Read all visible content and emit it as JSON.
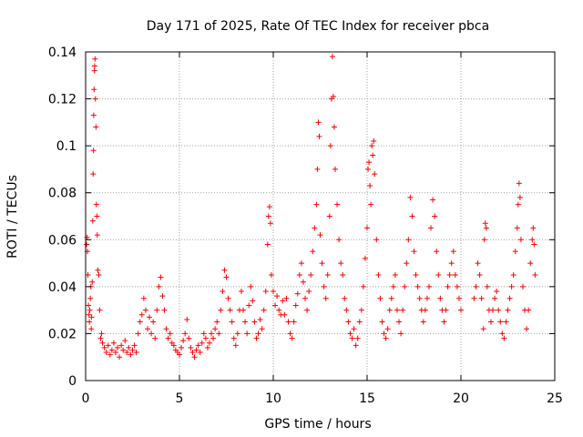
{
  "chart_data": {
    "type": "scatter",
    "title": "Day 171 of 2025, Rate Of TEC Index for receiver pbca",
    "xlabel": "GPS time / hours",
    "ylabel": "ROTI / TECUs",
    "xlim": [
      0,
      25
    ],
    "ylim": [
      0,
      0.14
    ],
    "xticks": [
      0,
      5,
      10,
      15,
      20,
      25
    ],
    "xtick_labels": [
      "0",
      "5",
      "10",
      "15",
      "20",
      "25"
    ],
    "yticks": [
      0,
      0.02,
      0.04,
      0.06,
      0.08,
      0.1,
      0.12,
      0.14
    ],
    "ytick_labels": [
      "0",
      "0.02",
      "0.04",
      "0.06",
      "0.08",
      "0.1",
      "0.12",
      "0.14"
    ],
    "grid": true,
    "marker": "+",
    "color": "#ff0000",
    "series": [
      {
        "name": "",
        "points": [
          [
            0.05,
            0.058
          ],
          [
            0.08,
            0.061
          ],
          [
            0.1,
            0.055
          ],
          [
            0.12,
            0.045
          ],
          [
            0.15,
            0.032
          ],
          [
            0.18,
            0.028
          ],
          [
            0.2,
            0.025
          ],
          [
            0.22,
            0.03
          ],
          [
            0.25,
            0.035
          ],
          [
            0.28,
            0.04
          ],
          [
            0.3,
            0.022
          ],
          [
            0.32,
            0.027
          ],
          [
            0.35,
            0.042
          ],
          [
            0.38,
            0.068
          ],
          [
            0.4,
            0.088
          ],
          [
            0.42,
            0.098
          ],
          [
            0.43,
            0.113
          ],
          [
            0.45,
            0.124
          ],
          [
            0.47,
            0.132
          ],
          [
            0.48,
            0.134
          ],
          [
            0.5,
            0.137
          ],
          [
            0.52,
            0.12
          ],
          [
            0.55,
            0.108
          ],
          [
            0.57,
            0.075
          ],
          [
            0.6,
            0.07
          ],
          [
            0.62,
            0.062
          ],
          [
            0.65,
            0.047
          ],
          [
            0.7,
            0.045
          ],
          [
            0.75,
            0.03
          ],
          [
            0.8,
            0.018
          ],
          [
            0.85,
            0.02
          ],
          [
            0.9,
            0.016
          ],
          [
            1.0,
            0.014
          ],
          [
            1.1,
            0.012
          ],
          [
            1.2,
            0.015
          ],
          [
            1.3,
            0.011
          ],
          [
            1.4,
            0.013
          ],
          [
            1.5,
            0.016
          ],
          [
            1.6,
            0.012
          ],
          [
            1.7,
            0.014
          ],
          [
            1.8,
            0.01
          ],
          [
            1.9,
            0.015
          ],
          [
            2.0,
            0.013
          ],
          [
            2.1,
            0.017
          ],
          [
            2.2,
            0.012
          ],
          [
            2.3,
            0.014
          ],
          [
            2.4,
            0.011
          ],
          [
            2.5,
            0.013
          ],
          [
            2.6,
            0.015
          ],
          [
            2.7,
            0.012
          ],
          [
            2.8,
            0.02
          ],
          [
            2.9,
            0.025
          ],
          [
            3.0,
            0.028
          ],
          [
            3.1,
            0.035
          ],
          [
            3.2,
            0.03
          ],
          [
            3.3,
            0.022
          ],
          [
            3.4,
            0.027
          ],
          [
            3.5,
            0.02
          ],
          [
            3.6,
            0.025
          ],
          [
            3.7,
            0.018
          ],
          [
            3.8,
            0.03
          ],
          [
            3.9,
            0.04
          ],
          [
            4.0,
            0.044
          ],
          [
            4.1,
            0.036
          ],
          [
            4.2,
            0.03
          ],
          [
            4.3,
            0.022
          ],
          [
            4.4,
            0.018
          ],
          [
            4.5,
            0.02
          ],
          [
            4.6,
            0.016
          ],
          [
            4.7,
            0.015
          ],
          [
            4.8,
            0.013
          ],
          [
            4.9,
            0.012
          ],
          [
            5.0,
            0.011
          ],
          [
            5.1,
            0.014
          ],
          [
            5.2,
            0.017
          ],
          [
            5.3,
            0.02
          ],
          [
            5.4,
            0.026
          ],
          [
            5.5,
            0.018
          ],
          [
            5.6,
            0.014
          ],
          [
            5.7,
            0.012
          ],
          [
            5.8,
            0.01
          ],
          [
            5.9,
            0.013
          ],
          [
            6.0,
            0.015
          ],
          [
            6.1,
            0.012
          ],
          [
            6.2,
            0.016
          ],
          [
            6.3,
            0.02
          ],
          [
            6.4,
            0.018
          ],
          [
            6.5,
            0.014
          ],
          [
            6.6,
            0.016
          ],
          [
            6.7,
            0.02
          ],
          [
            6.8,
            0.018
          ],
          [
            6.9,
            0.022
          ],
          [
            7.0,
            0.025
          ],
          [
            7.1,
            0.02
          ],
          [
            7.2,
            0.03
          ],
          [
            7.3,
            0.038
          ],
          [
            7.4,
            0.047
          ],
          [
            7.5,
            0.044
          ],
          [
            7.6,
            0.035
          ],
          [
            7.7,
            0.03
          ],
          [
            7.8,
            0.025
          ],
          [
            7.9,
            0.018
          ],
          [
            8.0,
            0.015
          ],
          [
            8.1,
            0.02
          ],
          [
            8.2,
            0.03
          ],
          [
            8.3,
            0.038
          ],
          [
            8.4,
            0.03
          ],
          [
            8.5,
            0.025
          ],
          [
            8.6,
            0.02
          ],
          [
            8.7,
            0.032
          ],
          [
            8.8,
            0.04
          ],
          [
            8.9,
            0.034
          ],
          [
            9.0,
            0.025
          ],
          [
            9.1,
            0.018
          ],
          [
            9.2,
            0.02
          ],
          [
            9.3,
            0.026
          ],
          [
            9.4,
            0.022
          ],
          [
            9.5,
            0.03
          ],
          [
            9.6,
            0.038
          ],
          [
            9.7,
            0.058
          ],
          [
            9.75,
            0.07
          ],
          [
            9.8,
            0.074
          ],
          [
            9.85,
            0.067
          ],
          [
            9.9,
            0.045
          ],
          [
            10.0,
            0.038
          ],
          [
            10.1,
            0.032
          ],
          [
            10.2,
            0.036
          ],
          [
            10.3,
            0.03
          ],
          [
            10.4,
            0.028
          ],
          [
            10.5,
            0.034
          ],
          [
            10.6,
            0.028
          ],
          [
            10.7,
            0.035
          ],
          [
            10.8,
            0.025
          ],
          [
            10.9,
            0.02
          ],
          [
            11.0,
            0.018
          ],
          [
            11.1,
            0.025
          ],
          [
            11.2,
            0.032
          ],
          [
            11.3,
            0.037
          ],
          [
            11.4,
            0.045
          ],
          [
            11.5,
            0.05
          ],
          [
            11.6,
            0.042
          ],
          [
            11.7,
            0.035
          ],
          [
            11.8,
            0.03
          ],
          [
            11.9,
            0.038
          ],
          [
            12.0,
            0.045
          ],
          [
            12.1,
            0.055
          ],
          [
            12.2,
            0.065
          ],
          [
            12.3,
            0.075
          ],
          [
            12.35,
            0.09
          ],
          [
            12.4,
            0.11
          ],
          [
            12.45,
            0.104
          ],
          [
            12.5,
            0.062
          ],
          [
            12.6,
            0.05
          ],
          [
            12.7,
            0.04
          ],
          [
            12.8,
            0.035
          ],
          [
            12.9,
            0.045
          ],
          [
            13.0,
            0.07
          ],
          [
            13.05,
            0.1
          ],
          [
            13.1,
            0.12
          ],
          [
            13.15,
            0.138
          ],
          [
            13.2,
            0.121
          ],
          [
            13.25,
            0.108
          ],
          [
            13.3,
            0.09
          ],
          [
            13.4,
            0.075
          ],
          [
            13.5,
            0.06
          ],
          [
            13.6,
            0.05
          ],
          [
            13.7,
            0.045
          ],
          [
            13.8,
            0.035
          ],
          [
            13.9,
            0.03
          ],
          [
            14.0,
            0.025
          ],
          [
            14.1,
            0.02
          ],
          [
            14.2,
            0.018
          ],
          [
            14.3,
            0.022
          ],
          [
            14.4,
            0.015
          ],
          [
            14.5,
            0.018
          ],
          [
            14.6,
            0.025
          ],
          [
            14.7,
            0.03
          ],
          [
            14.8,
            0.04
          ],
          [
            14.9,
            0.052
          ],
          [
            15.0,
            0.065
          ],
          [
            15.05,
            0.09
          ],
          [
            15.1,
            0.093
          ],
          [
            15.15,
            0.083
          ],
          [
            15.2,
            0.075
          ],
          [
            15.25,
            0.1
          ],
          [
            15.3,
            0.096
          ],
          [
            15.35,
            0.102
          ],
          [
            15.4,
            0.088
          ],
          [
            15.5,
            0.06
          ],
          [
            15.6,
            0.045
          ],
          [
            15.7,
            0.035
          ],
          [
            15.8,
            0.025
          ],
          [
            15.9,
            0.02
          ],
          [
            16.0,
            0.018
          ],
          [
            16.1,
            0.022
          ],
          [
            16.2,
            0.03
          ],
          [
            16.3,
            0.035
          ],
          [
            16.4,
            0.04
          ],
          [
            16.5,
            0.045
          ],
          [
            16.6,
            0.03
          ],
          [
            16.7,
            0.025
          ],
          [
            16.8,
            0.02
          ],
          [
            16.9,
            0.03
          ],
          [
            17.0,
            0.04
          ],
          [
            17.1,
            0.05
          ],
          [
            17.2,
            0.06
          ],
          [
            17.3,
            0.078
          ],
          [
            17.4,
            0.07
          ],
          [
            17.5,
            0.055
          ],
          [
            17.6,
            0.045
          ],
          [
            17.7,
            0.04
          ],
          [
            17.8,
            0.035
          ],
          [
            17.9,
            0.03
          ],
          [
            18.0,
            0.025
          ],
          [
            18.1,
            0.03
          ],
          [
            18.2,
            0.035
          ],
          [
            18.3,
            0.04
          ],
          [
            18.4,
            0.065
          ],
          [
            18.5,
            0.077
          ],
          [
            18.6,
            0.07
          ],
          [
            18.7,
            0.055
          ],
          [
            18.8,
            0.045
          ],
          [
            18.9,
            0.035
          ],
          [
            19.0,
            0.03
          ],
          [
            19.1,
            0.025
          ],
          [
            19.2,
            0.03
          ],
          [
            19.3,
            0.04
          ],
          [
            19.4,
            0.045
          ],
          [
            19.5,
            0.05
          ],
          [
            19.6,
            0.055
          ],
          [
            19.7,
            0.045
          ],
          [
            19.8,
            0.04
          ],
          [
            19.9,
            0.035
          ],
          [
            20.0,
            0.03
          ],
          [
            20.7,
            0.035
          ],
          [
            20.8,
            0.04
          ],
          [
            20.9,
            0.05
          ],
          [
            21.0,
            0.045
          ],
          [
            21.1,
            0.035
          ],
          [
            21.2,
            0.022
          ],
          [
            21.25,
            0.06
          ],
          [
            21.3,
            0.067
          ],
          [
            21.35,
            0.065
          ],
          [
            21.4,
            0.04
          ],
          [
            21.5,
            0.03
          ],
          [
            21.6,
            0.025
          ],
          [
            21.7,
            0.03
          ],
          [
            21.8,
            0.035
          ],
          [
            21.9,
            0.038
          ],
          [
            22.0,
            0.03
          ],
          [
            22.1,
            0.025
          ],
          [
            22.2,
            0.02
          ],
          [
            22.3,
            0.018
          ],
          [
            22.4,
            0.025
          ],
          [
            22.5,
            0.03
          ],
          [
            22.6,
            0.035
          ],
          [
            22.7,
            0.04
          ],
          [
            22.8,
            0.045
          ],
          [
            22.9,
            0.055
          ],
          [
            23.0,
            0.065
          ],
          [
            23.05,
            0.075
          ],
          [
            23.1,
            0.084
          ],
          [
            23.15,
            0.078
          ],
          [
            23.2,
            0.06
          ],
          [
            23.3,
            0.04
          ],
          [
            23.4,
            0.03
          ],
          [
            23.5,
            0.022
          ],
          [
            23.6,
            0.03
          ],
          [
            23.7,
            0.05
          ],
          [
            23.8,
            0.06
          ],
          [
            23.85,
            0.065
          ],
          [
            23.9,
            0.058
          ],
          [
            23.95,
            0.045
          ]
        ]
      }
    ]
  }
}
